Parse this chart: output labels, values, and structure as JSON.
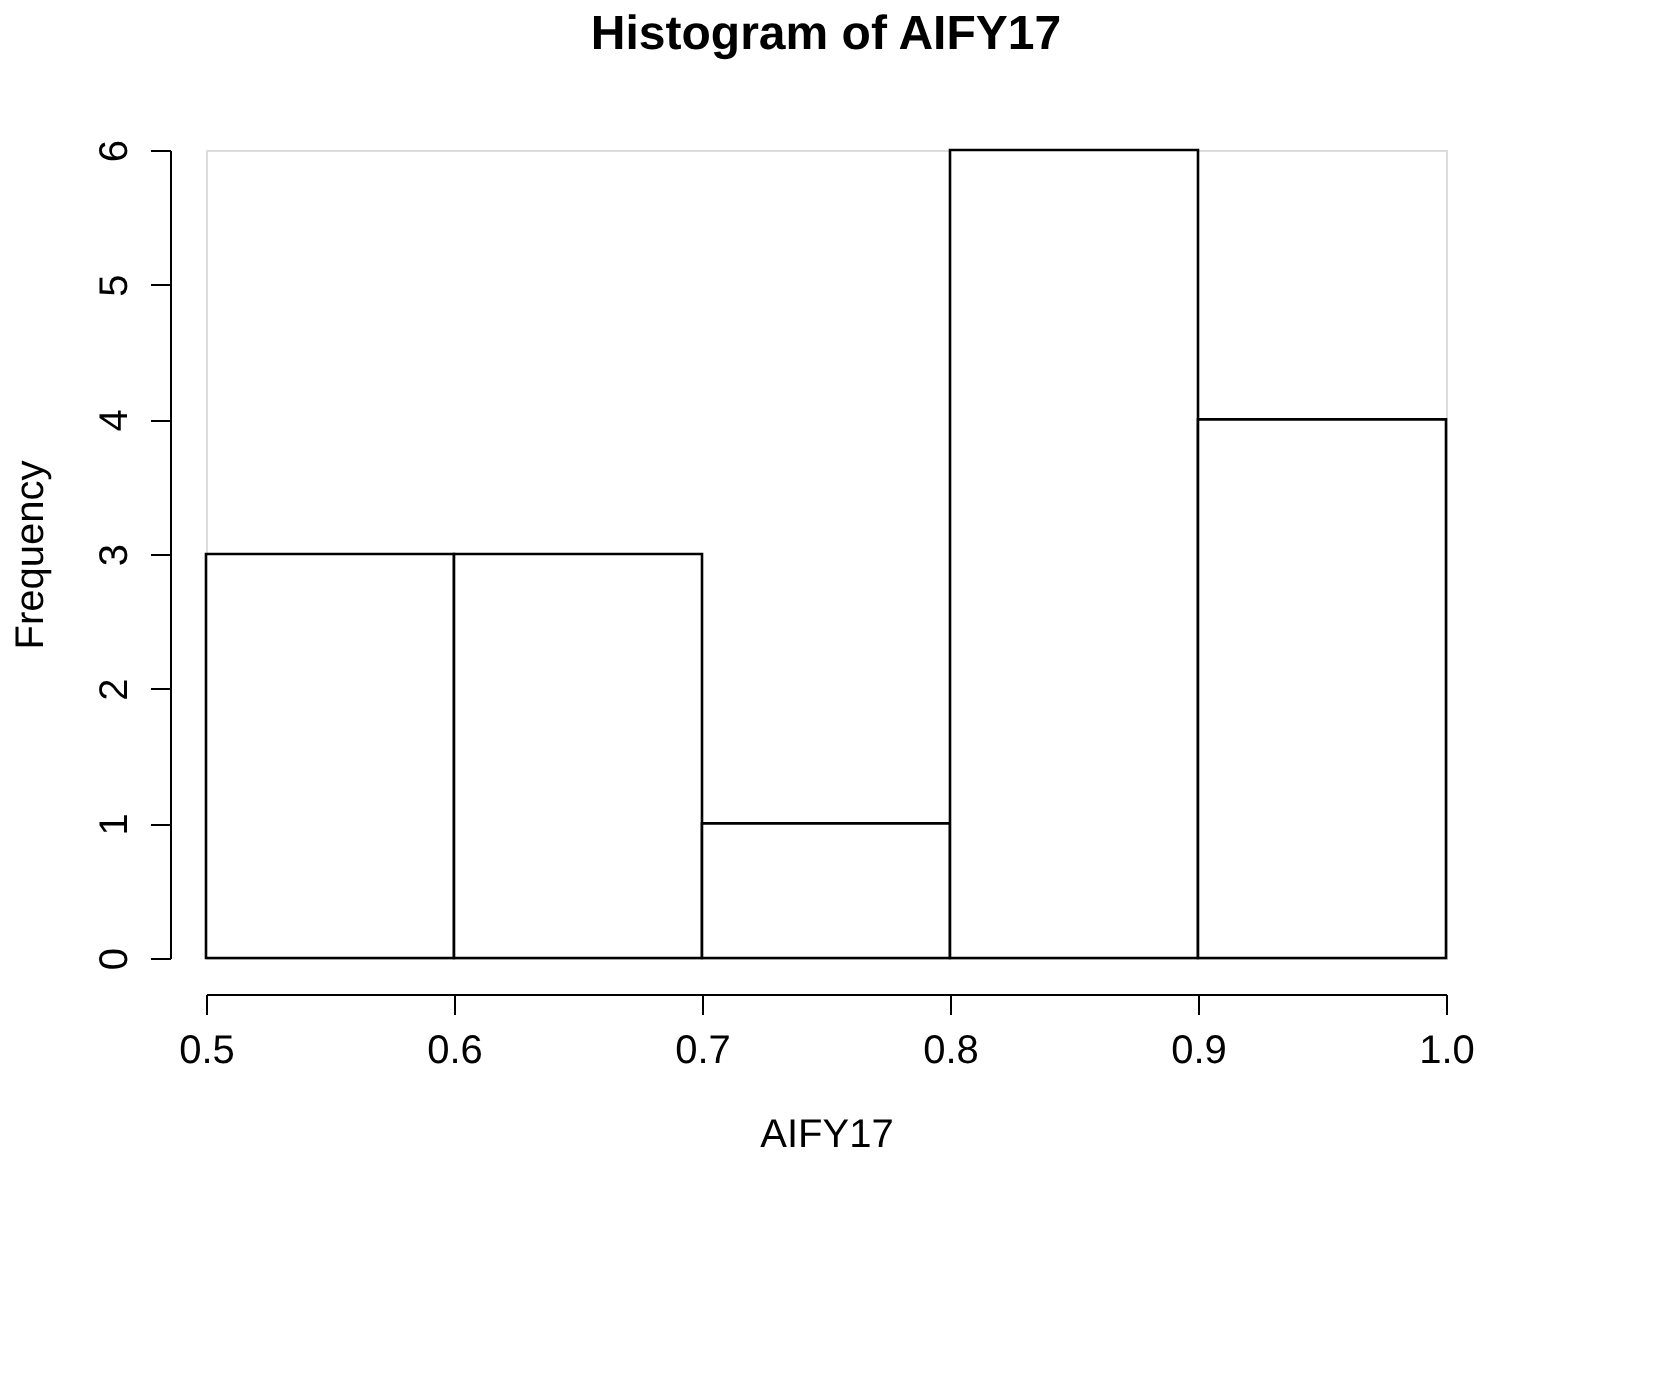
{
  "chart_data": {
    "type": "histogram",
    "title": "Histogram of AIFY17",
    "xlabel": "AIFY17",
    "ylabel": "Frequency",
    "bins": [
      0.5,
      0.6,
      0.7,
      0.8,
      0.9,
      1.0
    ],
    "values": [
      3,
      3,
      1,
      6,
      4
    ],
    "color": "#ffffff",
    "xlim": [
      0.5,
      1.0
    ],
    "ylim": [
      0,
      6
    ],
    "xticks": [
      0.5,
      0.6,
      0.7,
      0.8,
      0.9,
      {
        "value": 1.0,
        "label": "1.0"
      }
    ],
    "yticks": [
      0,
      1,
      2,
      3,
      4,
      5,
      6
    ],
    "grid": false
  }
}
